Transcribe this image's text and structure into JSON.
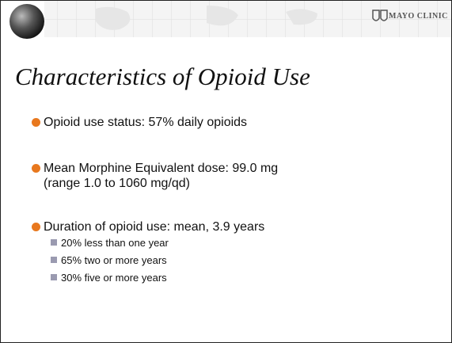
{
  "header": {
    "logo": "MAYO CLINIC"
  },
  "title": "Characteristics of Opioid Use",
  "bullets": [
    {
      "lines": [
        "Opioid use status:  57% daily opioids"
      ]
    },
    {
      "lines": [
        "Mean Morphine Equivalent dose: 99.0 mg",
        "(range 1.0 to 1060 mg/qd)"
      ]
    },
    {
      "lines": [
        "Duration of opioid use: mean, 3.9 years"
      ],
      "subbullets": [
        "20% less than one year",
        "65% two or more years",
        "30% five or more years"
      ]
    }
  ]
}
